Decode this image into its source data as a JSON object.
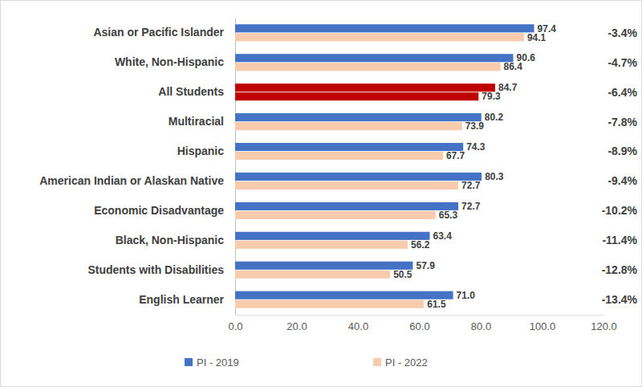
{
  "chart_data": {
    "type": "bar",
    "orientation": "horizontal",
    "categories": [
      "Asian or Pacific Islander",
      "White, Non-Hispanic",
      "All Students",
      "Multiracial",
      "Hispanic",
      "American Indian or Alaskan Native",
      "Economic Disadvantage",
      "Black, Non-Hispanic",
      "Students with Disabilities",
      "English Learner"
    ],
    "series": [
      {
        "name": "PI - 2019",
        "color": "#4472c4",
        "colors": [
          "#4472c4",
          "#4472c4",
          "#c00000",
          "#4472c4",
          "#4472c4",
          "#4472c4",
          "#4472c4",
          "#4472c4",
          "#4472c4",
          "#4472c4"
        ],
        "values": [
          97.4,
          90.6,
          84.7,
          80.2,
          74.3,
          80.3,
          72.7,
          63.4,
          57.9,
          71.0
        ],
        "value_labels": [
          "97.4",
          "90.6",
          "84.7",
          "80.2",
          "74.3",
          "80.3",
          "72.7",
          "63.4",
          "57.9",
          "71.0"
        ]
      },
      {
        "name": "PI - 2022",
        "color": "#f8cbad",
        "colors": [
          "#f8cbad",
          "#f8cbad",
          "#c00000",
          "#f8cbad",
          "#f8cbad",
          "#f8cbad",
          "#f8cbad",
          "#f8cbad",
          "#f8cbad",
          "#f8cbad"
        ],
        "values": [
          94.1,
          86.4,
          79.3,
          73.9,
          67.7,
          72.7,
          65.3,
          56.2,
          50.5,
          61.5
        ],
        "value_labels": [
          "94.1",
          "86.4",
          "79.3",
          "73.9",
          "67.7",
          "72.7",
          "65.3",
          "56.2",
          "50.5",
          "61.5"
        ]
      }
    ],
    "annotations": [
      "-3.4%",
      "-4.7%",
      "-6.4%",
      "-7.8%",
      "-8.9%",
      "-9.4%",
      "-10.2%",
      "-11.4%",
      "-12.8%",
      "-13.4%"
    ],
    "xlim": [
      0,
      120
    ],
    "xticks": [
      {
        "value": 0,
        "label": "0.0"
      },
      {
        "value": 20,
        "label": "20.0"
      },
      {
        "value": 40,
        "label": "40.0"
      },
      {
        "value": 60,
        "label": "60.0"
      },
      {
        "value": 80,
        "label": "80.0"
      },
      {
        "value": 100,
        "label": "100.0"
      },
      {
        "value": 120,
        "label": "120.0"
      }
    ],
    "grid": false,
    "data_labels": true,
    "legend": "bottom"
  }
}
